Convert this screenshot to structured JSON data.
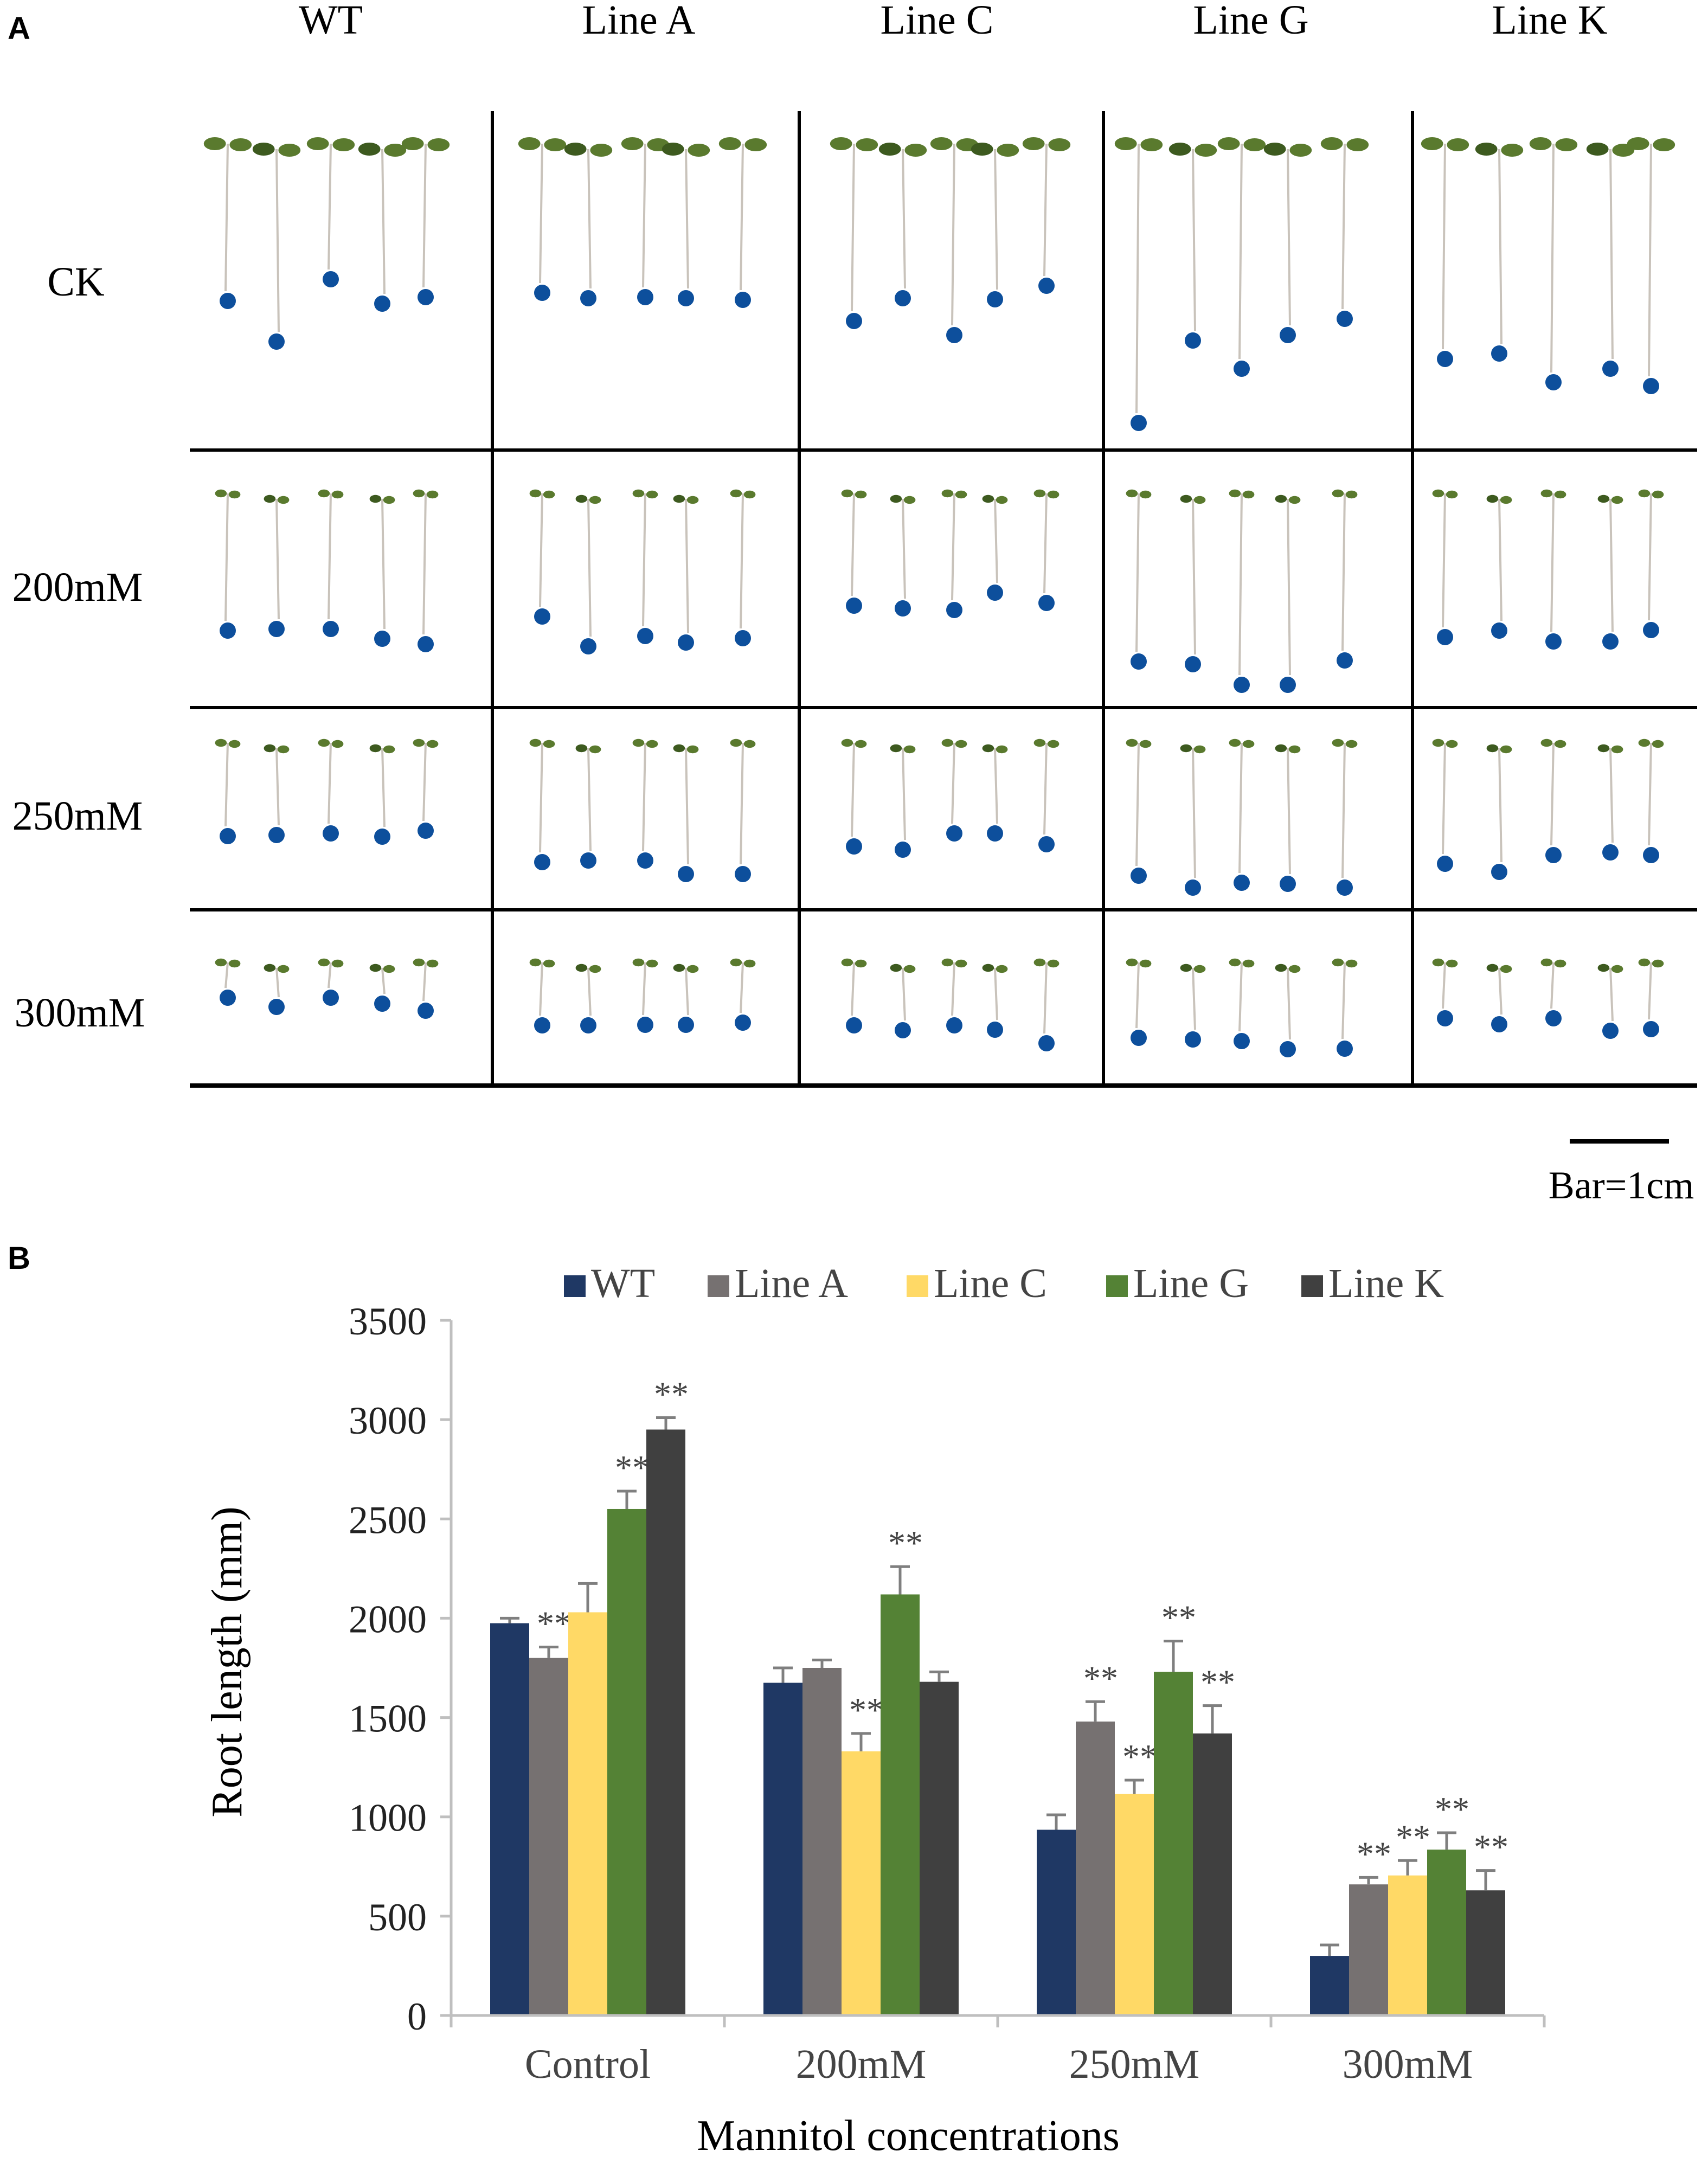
{
  "panel_a": {
    "label": "A",
    "columns": [
      "WT",
      "Line A",
      "Line C",
      "Line G",
      "Line K"
    ],
    "rows": [
      "CK",
      "200mM",
      "250mM",
      "300mM"
    ],
    "scale_bar_label": "Bar=1cm",
    "colors": {
      "seed_dot": "#0d4f9c",
      "stem": "#c9c3bb",
      "leaf": "#5a7a2e",
      "leaf_dark": "#3d5a1f"
    }
  },
  "panel_b": {
    "label": "B",
    "significance_marker": "**"
  },
  "chart_data": {
    "type": "bar",
    "title": "",
    "xlabel": "Mannitol concentrations",
    "ylabel": "Root length (mm)",
    "ylim": [
      0,
      3500
    ],
    "yticks": [
      0,
      500,
      1000,
      1500,
      2000,
      2500,
      3000,
      3500
    ],
    "categories": [
      "Control",
      "200mM",
      "250mM",
      "300mM"
    ],
    "legend_position": "top",
    "series": [
      {
        "name": "WT",
        "color": "#1f3864",
        "values": [
          1975,
          1675,
          935,
          300
        ],
        "errors": [
          25,
          75,
          75,
          55
        ],
        "significant": [
          false,
          false,
          false,
          false
        ]
      },
      {
        "name": "Line A",
        "color": "#767171",
        "values": [
          1800,
          1750,
          1480,
          660
        ],
        "errors": [
          55,
          40,
          100,
          35
        ],
        "significant": [
          true,
          false,
          true,
          true
        ]
      },
      {
        "name": "Line C",
        "color": "#ffd966",
        "values": [
          2030,
          1330,
          1115,
          705
        ],
        "errors": [
          145,
          90,
          70,
          75
        ],
        "significant": [
          false,
          true,
          true,
          true
        ]
      },
      {
        "name": "Line G",
        "color": "#548235",
        "values": [
          2550,
          2120,
          1730,
          835
        ],
        "errors": [
          90,
          140,
          155,
          85
        ],
        "significant": [
          true,
          true,
          true,
          true
        ]
      },
      {
        "name": "Line K",
        "color": "#404040",
        "values": [
          2950,
          1680,
          1420,
          630
        ],
        "errors": [
          60,
          50,
          140,
          100
        ],
        "significant": [
          true,
          false,
          true,
          true
        ]
      }
    ]
  }
}
